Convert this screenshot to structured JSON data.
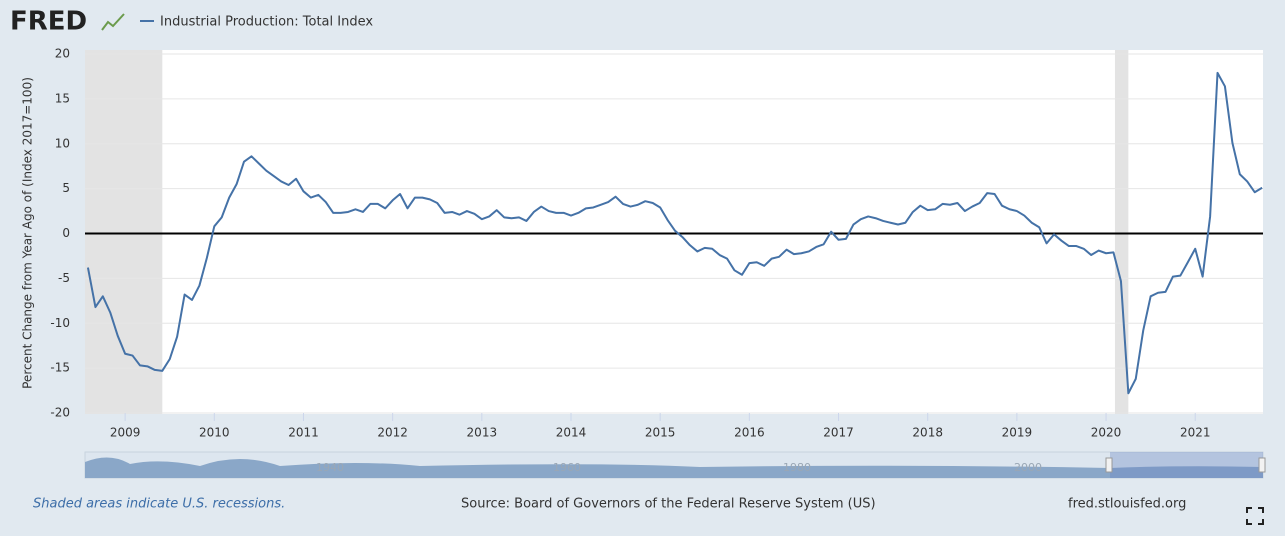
{
  "header": {
    "logo": "FRED"
  },
  "chart_data": {
    "type": "line",
    "ylabel": "Percent Change from Year Ago of (Index 2017=100)",
    "series": [
      {
        "name": "Industrial Production: Total Index",
        "color": "#4572a7",
        "x": [
          2008.583,
          2008.667,
          2008.75,
          2008.833,
          2008.917,
          2009,
          2009.083,
          2009.167,
          2009.25,
          2009.333,
          2009.417,
          2009.5,
          2009.583,
          2009.667,
          2009.75,
          2009.833,
          2009.917,
          2010,
          2010.083,
          2010.167,
          2010.25,
          2010.333,
          2010.417,
          2010.5,
          2010.583,
          2010.667,
          2010.75,
          2010.833,
          2010.917,
          2011,
          2011.083,
          2011.167,
          2011.25,
          2011.333,
          2011.417,
          2011.5,
          2011.583,
          2011.667,
          2011.75,
          2011.833,
          2011.917,
          2012,
          2012.083,
          2012.167,
          2012.25,
          2012.333,
          2012.417,
          2012.5,
          2012.583,
          2012.667,
          2012.75,
          2012.833,
          2012.917,
          2013,
          2013.083,
          2013.167,
          2013.25,
          2013.333,
          2013.417,
          2013.5,
          2013.583,
          2013.667,
          2013.75,
          2013.833,
          2013.917,
          2014,
          2014.083,
          2014.167,
          2014.25,
          2014.333,
          2014.417,
          2014.5,
          2014.583,
          2014.667,
          2014.75,
          2014.833,
          2014.917,
          2015,
          2015.083,
          2015.167,
          2015.25,
          2015.333,
          2015.417,
          2015.5,
          2015.583,
          2015.667,
          2015.75,
          2015.833,
          2015.917,
          2016,
          2016.083,
          2016.167,
          2016.25,
          2016.333,
          2016.417,
          2016.5,
          2016.583,
          2016.667,
          2016.75,
          2016.833,
          2016.917,
          2017,
          2017.083,
          2017.167,
          2017.25,
          2017.333,
          2017.417,
          2017.5,
          2017.583,
          2017.667,
          2017.75,
          2017.833,
          2017.917,
          2018,
          2018.083,
          2018.167,
          2018.25,
          2018.333,
          2018.417,
          2018.5,
          2018.583,
          2018.667,
          2018.75,
          2018.833,
          2018.917,
          2019,
          2019.083,
          2019.167,
          2019.25,
          2019.333,
          2019.417,
          2019.5,
          2019.583,
          2019.667,
          2019.75,
          2019.833,
          2019.917,
          2020,
          2020.083,
          2020.167,
          2020.25,
          2020.333,
          2020.417,
          2020.5,
          2020.583,
          2020.667,
          2020.75,
          2020.833,
          2020.917,
          2021,
          2021.083,
          2021.167,
          2021.25,
          2021.333,
          2021.417,
          2021.5,
          2021.583,
          2021.667,
          2021.75
        ],
        "values": [
          -3.8,
          -8.2,
          -7.0,
          -8.8,
          -11.4,
          -13.4,
          -13.6,
          -14.7,
          -14.8,
          -15.2,
          -15.3,
          -14.0,
          -11.5,
          -6.8,
          -7.4,
          -5.8,
          -2.7,
          0.8,
          1.8,
          4.0,
          5.5,
          8.0,
          8.6,
          7.8,
          7.0,
          6.4,
          5.8,
          5.4,
          6.1,
          4.7,
          4.0,
          4.3,
          3.5,
          2.3,
          2.3,
          2.4,
          2.7,
          2.4,
          3.3,
          3.3,
          2.8,
          3.7,
          4.4,
          2.8,
          4.0,
          4.0,
          3.8,
          3.4,
          2.3,
          2.4,
          2.1,
          2.5,
          2.2,
          1.6,
          1.9,
          2.6,
          1.8,
          1.7,
          1.8,
          1.4,
          2.4,
          3.0,
          2.5,
          2.3,
          2.3,
          2.0,
          2.3,
          2.8,
          2.9,
          3.2,
          3.5,
          4.1,
          3.3,
          3.0,
          3.2,
          3.6,
          3.4,
          2.9,
          1.5,
          0.3,
          -0.4,
          -1.3,
          -2.0,
          -1.6,
          -1.7,
          -2.4,
          -2.8,
          -4.1,
          -4.6,
          -3.3,
          -3.2,
          -3.6,
          -2.8,
          -2.6,
          -1.8,
          -2.3,
          -2.2,
          -2.0,
          -1.5,
          -1.2,
          0.2,
          -0.7,
          -0.6,
          1.0,
          1.6,
          1.9,
          1.7,
          1.4,
          1.2,
          1.0,
          1.2,
          2.4,
          3.1,
          2.6,
          2.7,
          3.3,
          3.2,
          3.4,
          2.5,
          3.0,
          3.4,
          4.5,
          4.4,
          3.1,
          2.7,
          2.5,
          2.0,
          1.2,
          0.7,
          -1.1,
          -0.1,
          -0.8,
          -1.4,
          -1.4,
          -1.7,
          -2.4,
          -1.9,
          -2.2,
          -2.1,
          -5.3,
          -17.8,
          -16.2,
          -10.8,
          -7.0,
          -6.6,
          -6.5,
          -4.8,
          -4.7,
          -3.2,
          -1.7,
          -4.8,
          1.9,
          17.9,
          16.4,
          10.1,
          6.6,
          5.8,
          4.6,
          5.1
        ]
      }
    ],
    "recessions": [
      [
        2008.55,
        2009.417
      ],
      [
        2020.1,
        2020.25
      ]
    ],
    "xlim": [
      2008.55,
      2021.76
    ],
    "xticks": [
      2009,
      2010,
      2011,
      2012,
      2013,
      2014,
      2015,
      2016,
      2017,
      2018,
      2019,
      2020,
      2021
    ],
    "ylim": [
      -20,
      20
    ],
    "yticks": [
      -20,
      -15,
      -10,
      -5,
      0,
      5,
      10,
      15,
      20
    ],
    "grid": true
  },
  "navigator": {
    "labels": [
      "1940",
      "1960",
      "1980",
      "2000"
    ]
  },
  "footer": {
    "note": "Shaded areas indicate U.S. recessions.",
    "source": "Source: Board of Governors of the Federal Reserve System (US)",
    "site": "fred.stlouisfed.org"
  }
}
